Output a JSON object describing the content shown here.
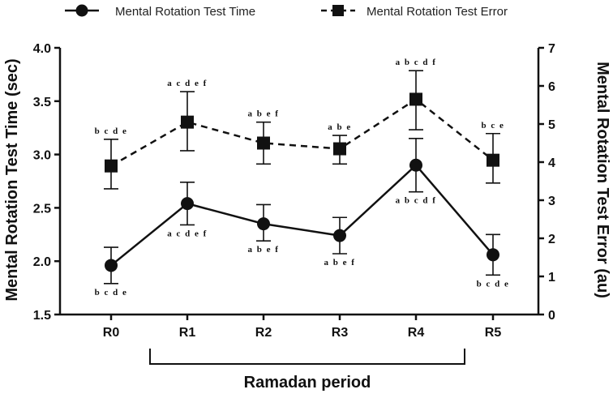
{
  "chart_data": {
    "type": "line",
    "categories": [
      "R0",
      "R1",
      "R2",
      "R3",
      "R4",
      "R5"
    ],
    "series": [
      {
        "name": "Mental Rotation Test Time",
        "axis": "left",
        "marker": "circle",
        "line_style": "solid",
        "values": [
          1.96,
          2.54,
          2.35,
          2.24,
          2.9,
          2.06
        ],
        "error_low": [
          1.79,
          2.34,
          2.19,
          2.07,
          2.65,
          1.87
        ],
        "error_high": [
          2.13,
          2.74,
          2.53,
          2.41,
          3.15,
          2.25
        ],
        "annotations": [
          "b c d e",
          "a c d e f",
          "a b e f",
          "a b e f",
          "a b c d f",
          "b c d e"
        ]
      },
      {
        "name": "Mental Rotation Test Error",
        "axis": "right",
        "marker": "square",
        "line_style": "dashed",
        "values": [
          3.9,
          5.05,
          4.5,
          4.35,
          5.65,
          4.05
        ],
        "error_low": [
          3.3,
          4.3,
          3.95,
          3.95,
          4.85,
          3.45
        ],
        "error_high": [
          4.6,
          5.85,
          5.05,
          4.7,
          6.4,
          4.75
        ],
        "annotations": [
          "b c d e",
          "a c d e f",
          "a b e f",
          "a b e",
          "a b c d f",
          "b c e"
        ]
      }
    ],
    "ylabel": "Mental Rotation Test Time (sec)",
    "ylabel_right": "Mental Rotation Test Error (au)",
    "ylim": [
      1.5,
      4.0
    ],
    "yticks": [
      "1.5",
      "2.0",
      "2.5",
      "3.0",
      "3.5",
      "4.0"
    ],
    "ylim_right": [
      0,
      7
    ],
    "yticks_right": [
      "0",
      "1",
      "2",
      "3",
      "4",
      "5",
      "6",
      "7"
    ],
    "bracket_label": "Ramadan period",
    "bracket_range": [
      "R1",
      "R4"
    ],
    "legend_position": "top",
    "grid": false,
    "colors": {
      "line": "#111111",
      "marker": "#111111"
    }
  }
}
